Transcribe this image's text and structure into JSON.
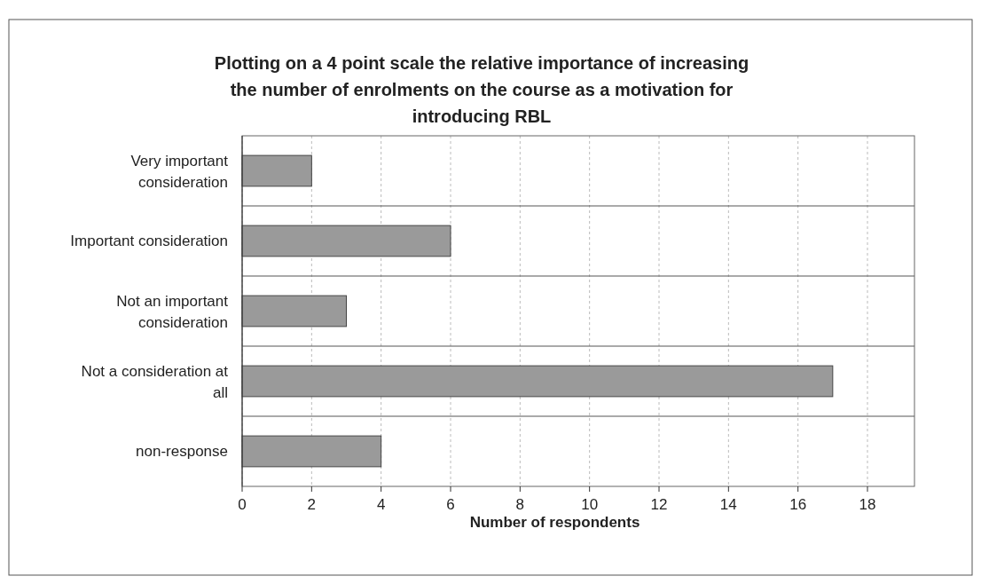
{
  "chart_data": {
    "type": "bar",
    "orientation": "horizontal",
    "title": "Plotting on a 4 point scale the relative importance of increasing the number of enrolments on the course as a motivation for introducing RBL",
    "xlabel": "Number of respondents",
    "categories": [
      "Very important consideration",
      "Important consideration",
      "Not an important consideration",
      "Not a consideration at all",
      "non-response"
    ],
    "values": [
      2,
      6,
      3,
      17,
      4
    ],
    "color": "#9a9a9a",
    "xlim": [
      0,
      18
    ],
    "xticks": [
      0,
      2,
      4,
      6,
      8,
      10,
      12,
      14,
      16,
      18
    ],
    "grid": true
  }
}
